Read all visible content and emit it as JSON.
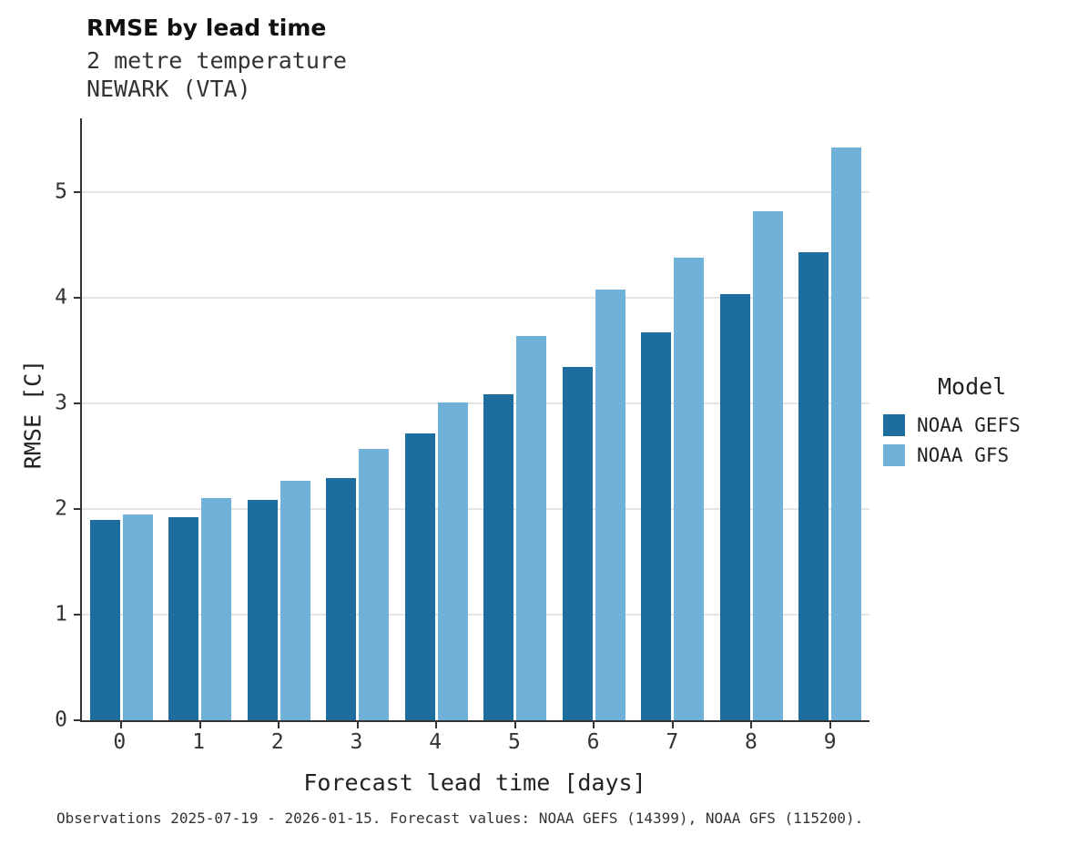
{
  "title": "RMSE by lead time",
  "subtitle": "2 metre temperature\nNEWARK (VTA)",
  "footer": "Observations 2025-07-19 - 2026-01-15. Forecast values: NOAA GEFS (14399), NOAA GFS (115200).",
  "chart_data": {
    "type": "bar",
    "title": "RMSE by lead time",
    "subtitle_lines": [
      "2 metre temperature",
      "NEWARK (VTA)"
    ],
    "xlabel": "Forecast lead time [days]",
    "ylabel": "RMSE [C]",
    "categories": [
      "0",
      "1",
      "2",
      "3",
      "4",
      "5",
      "6",
      "7",
      "8",
      "9"
    ],
    "series": [
      {
        "name": "NOAA GEFS",
        "color": "#1d6e9e",
        "values": [
          1.9,
          1.92,
          2.09,
          2.29,
          2.72,
          3.09,
          3.35,
          3.67,
          4.04,
          4.43
        ]
      },
      {
        "name": "NOAA GFS",
        "color": "#6fb1d8",
        "values": [
          1.95,
          2.1,
          2.27,
          2.57,
          3.01,
          3.64,
          4.08,
          4.38,
          4.82,
          5.42
        ]
      }
    ],
    "ylim": [
      0,
      5.7
    ],
    "yticks": [
      0,
      1,
      2,
      3,
      4,
      5
    ],
    "grid": "horizontal",
    "gridline_color": "#e4e4e4",
    "legend_title": "Model",
    "legend_position": "right"
  }
}
